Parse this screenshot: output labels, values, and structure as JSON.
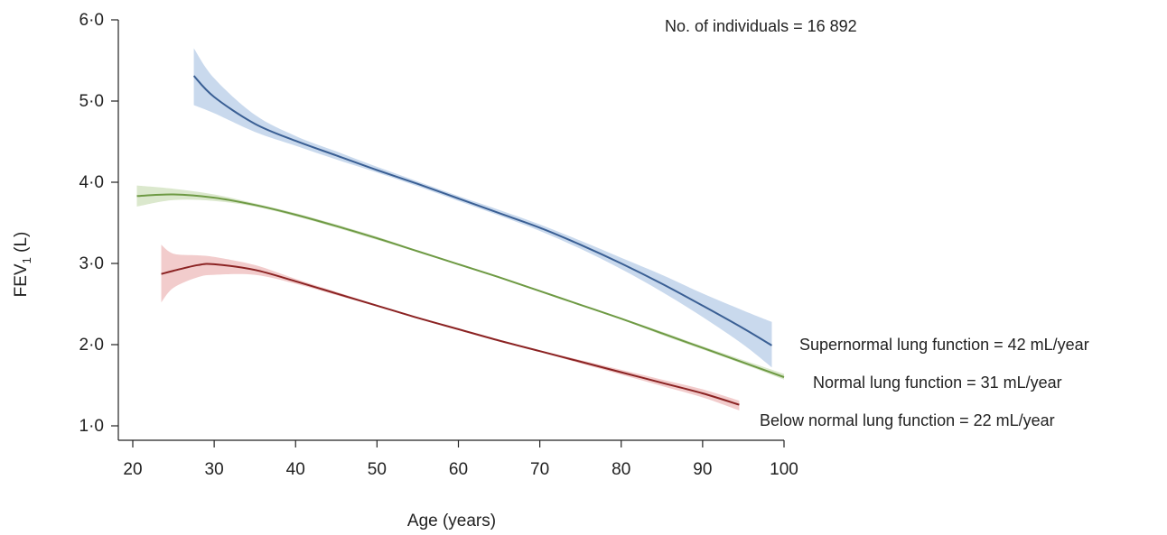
{
  "chart_data": {
    "type": "line",
    "title": "",
    "annotation": "No. of individuals = 16 892",
    "xlabel": "Age (years)",
    "ylabel": {
      "main": "FEV",
      "sub": "1",
      "unit": " (L)"
    },
    "xlim": [
      20,
      100
    ],
    "ylim": [
      1.0,
      6.0
    ],
    "xticks": [
      20,
      30,
      40,
      50,
      60,
      70,
      80,
      90,
      100
    ],
    "xtick_labels": [
      "20",
      "30",
      "40",
      "50",
      "60",
      "70",
      "80",
      "90",
      "100"
    ],
    "yticks": [
      1,
      2,
      3,
      4,
      5,
      6
    ],
    "ytick_labels": [
      "1·0",
      "2·0",
      "3·0",
      "4·0",
      "5·0",
      "6·0"
    ],
    "grid": false,
    "series": [
      {
        "name": "Supernormal lung function = 42 mL/year",
        "color": "#3a5f94",
        "band_color": "#c9d9ed",
        "x": [
          27.5,
          30,
          35,
          40,
          45,
          50,
          55,
          60,
          65,
          70,
          75,
          80,
          85,
          90,
          95,
          98.5
        ],
        "y": [
          5.31,
          5.05,
          4.72,
          4.51,
          4.33,
          4.15,
          3.98,
          3.8,
          3.62,
          3.44,
          3.23,
          3.0,
          2.75,
          2.48,
          2.2,
          1.99
        ],
        "lower": [
          4.95,
          4.85,
          4.62,
          4.45,
          4.28,
          4.12,
          3.95,
          3.77,
          3.59,
          3.4,
          3.18,
          2.93,
          2.65,
          2.34,
          2.0,
          1.72
        ],
        "upper": [
          5.65,
          5.28,
          4.83,
          4.57,
          4.38,
          4.19,
          4.01,
          3.83,
          3.66,
          3.48,
          3.28,
          3.07,
          2.86,
          2.63,
          2.42,
          2.28
        ]
      },
      {
        "name": "Normal lung function = 31 mL/year",
        "color": "#6e9a44",
        "band_color": "#dbe8cd",
        "x": [
          20.5,
          25,
          30,
          35,
          40,
          45,
          50,
          55,
          60,
          65,
          70,
          75,
          80,
          85,
          90,
          95,
          100
        ],
        "y": [
          3.83,
          3.85,
          3.81,
          3.72,
          3.6,
          3.46,
          3.31,
          3.15,
          2.99,
          2.83,
          2.66,
          2.49,
          2.32,
          2.14,
          1.96,
          1.78,
          1.6
        ],
        "lower": [
          3.7,
          3.78,
          3.77,
          3.7,
          3.58,
          3.44,
          3.29,
          3.14,
          2.98,
          2.82,
          2.65,
          2.48,
          2.31,
          2.12,
          1.94,
          1.76,
          1.57
        ],
        "upper": [
          3.96,
          3.92,
          3.85,
          3.74,
          3.62,
          3.48,
          3.33,
          3.16,
          3.0,
          2.84,
          2.67,
          2.5,
          2.33,
          2.16,
          1.98,
          1.81,
          1.64
        ]
      },
      {
        "name": "Below normal lung function = 22 mL/year",
        "color": "#8b2323",
        "band_color": "#f2cccc",
        "x": [
          23.5,
          25,
          28,
          30,
          35,
          40,
          45,
          50,
          55,
          60,
          65,
          70,
          75,
          80,
          85,
          90,
          94.5
        ],
        "y": [
          2.87,
          2.91,
          2.98,
          2.99,
          2.92,
          2.78,
          2.63,
          2.48,
          2.33,
          2.19,
          2.05,
          1.92,
          1.79,
          1.66,
          1.53,
          1.4,
          1.26
        ],
        "lower": [
          2.52,
          2.7,
          2.83,
          2.86,
          2.86,
          2.75,
          2.61,
          2.47,
          2.32,
          2.18,
          2.04,
          1.91,
          1.77,
          1.63,
          1.49,
          1.35,
          1.19
        ],
        "upper": [
          3.23,
          3.12,
          3.1,
          3.08,
          2.98,
          2.81,
          2.65,
          2.49,
          2.34,
          2.2,
          2.06,
          1.93,
          1.81,
          1.69,
          1.57,
          1.45,
          1.31
        ]
      }
    ]
  }
}
